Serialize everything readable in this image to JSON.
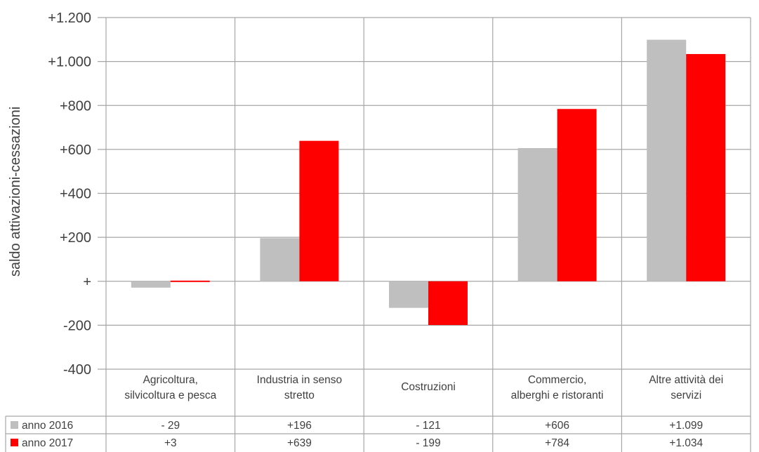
{
  "chart_data": {
    "type": "bar",
    "ylabel": "saldo attivazioni-cessazioni",
    "ylim": [
      -400,
      1200
    ],
    "yticks": [
      {
        "value": 1200,
        "label": "+1.200"
      },
      {
        "value": 1000,
        "label": "+1.000"
      },
      {
        "value": 800,
        "label": "+800"
      },
      {
        "value": 600,
        "label": "+600"
      },
      {
        "value": 400,
        "label": "+400"
      },
      {
        "value": 200,
        "label": "+200"
      },
      {
        "value": 0,
        "label": "+"
      },
      {
        "value": -200,
        "label": "-200"
      },
      {
        "value": -400,
        "label": "-400"
      }
    ],
    "grid": true,
    "legend": "data-table",
    "categories": [
      [
        "Agricoltura,",
        "silvicoltura e pesca"
      ],
      [
        "Industria in senso",
        "stretto"
      ],
      [
        "Costruzioni"
      ],
      [
        "Commercio,",
        "alberghi e ristoranti"
      ],
      [
        "Altre attività dei",
        "servizi"
      ]
    ],
    "series": [
      {
        "name": "anno 2016",
        "color": "#bfbfbf",
        "values": [
          -29,
          196,
          -121,
          606,
          1099
        ],
        "labels": [
          "- 29",
          "+196",
          "- 121",
          "+606",
          "+1.099"
        ]
      },
      {
        "name": "anno 2017",
        "color": "#ff0000",
        "values": [
          3,
          639,
          -199,
          784,
          1034
        ],
        "labels": [
          "+3",
          "+639",
          "- 199",
          "+784",
          "+1.034"
        ]
      }
    ]
  }
}
